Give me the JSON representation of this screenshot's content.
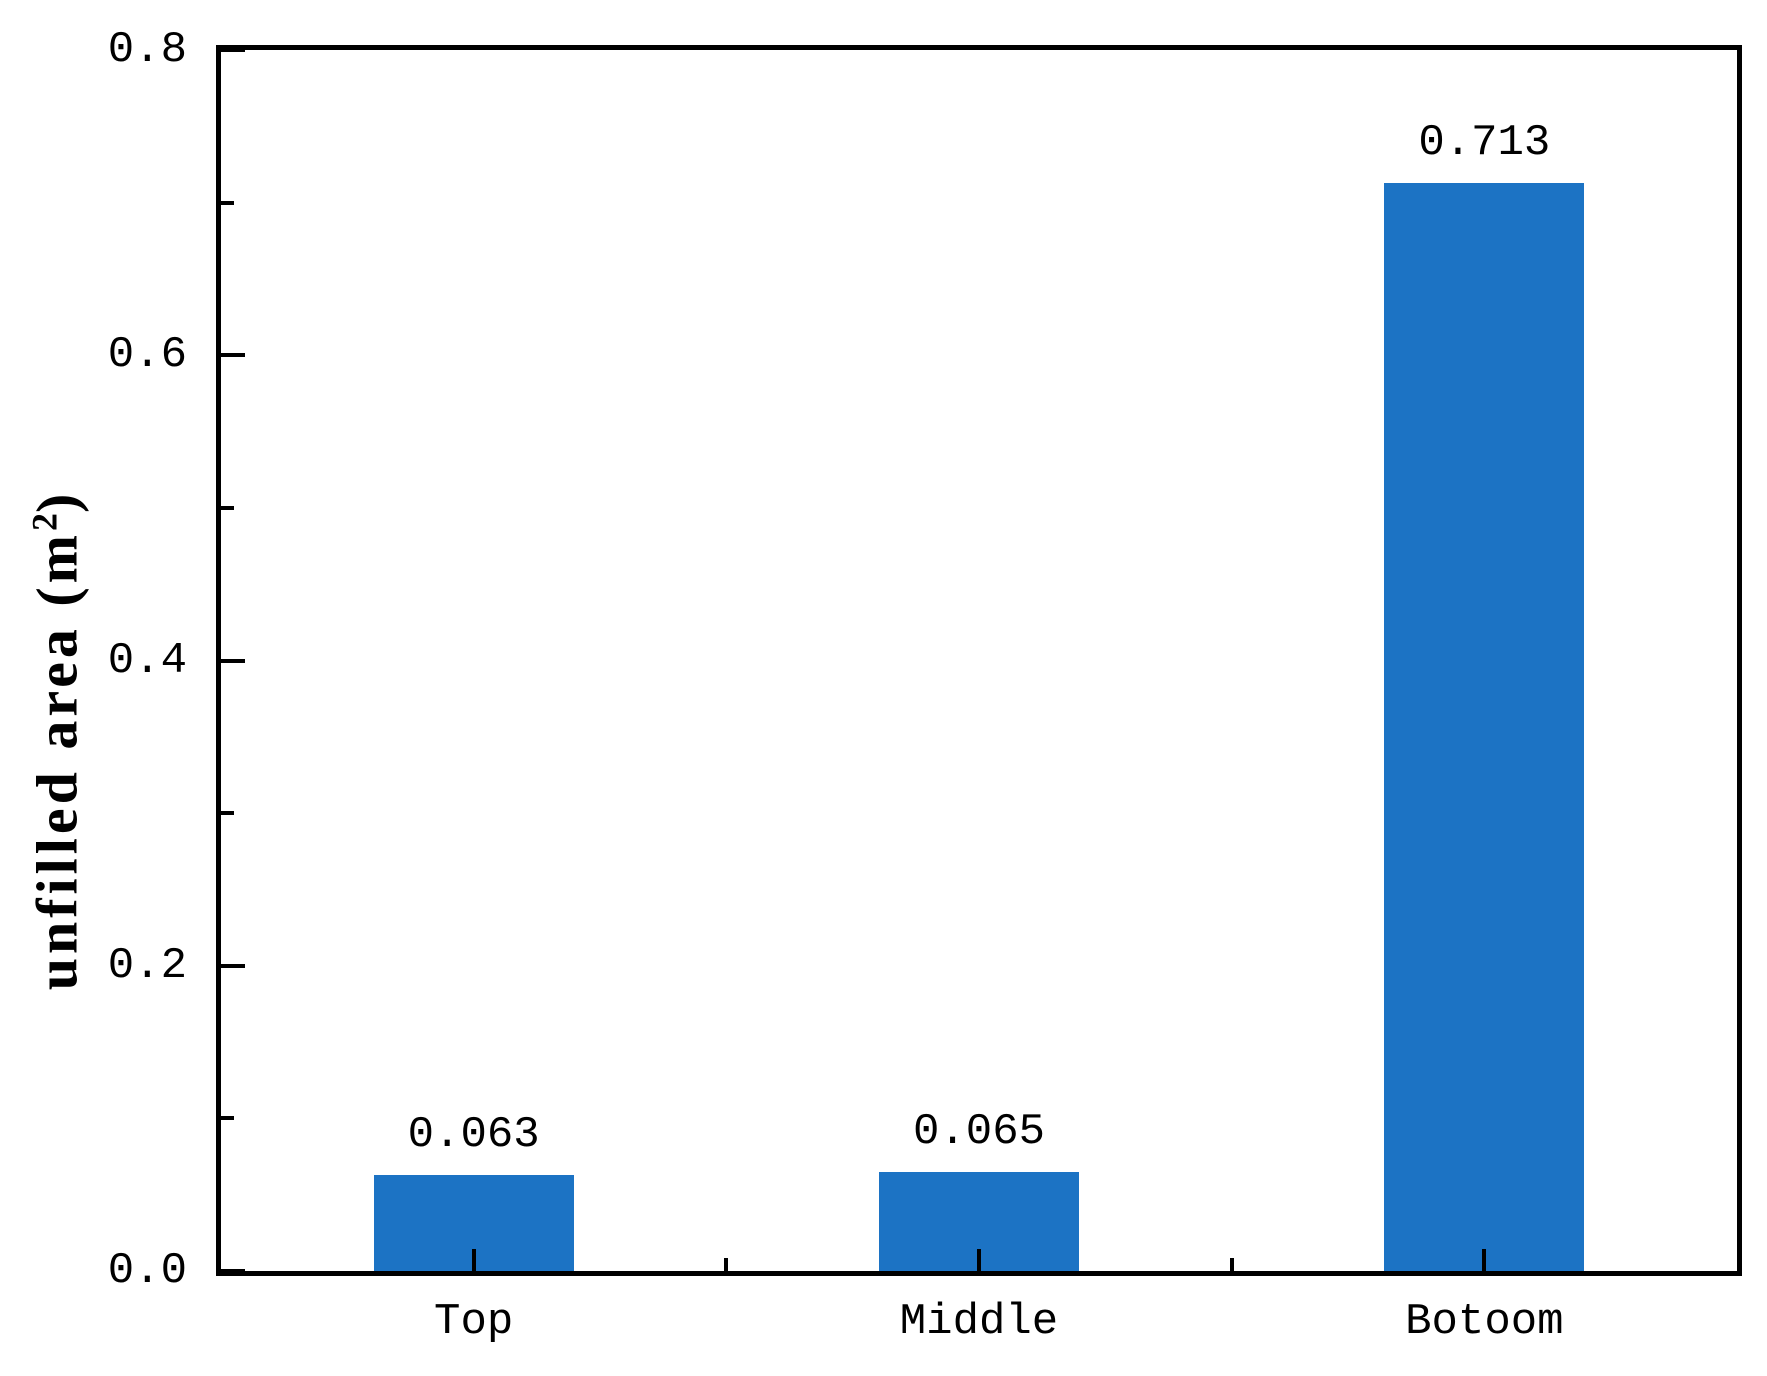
{
  "chart_data": {
    "type": "bar",
    "categories": [
      "Top",
      "Middle",
      "Botoom"
    ],
    "values": [
      0.063,
      0.065,
      0.713
    ],
    "value_labels": [
      "0.063",
      "0.065",
      "0.713"
    ],
    "series_count": 1,
    "title": "",
    "xlabel": "",
    "ylabel": "unfilled area (m²)",
    "ylabel_parts": {
      "base": "unfilled area (m",
      "sup": "2",
      "end": ")"
    },
    "ylim": [
      0.0,
      0.8
    ],
    "yticks": {
      "values": [
        0.0,
        0.2,
        0.4,
        0.6,
        0.8
      ],
      "labels": [
        "0.0",
        "0.2",
        "0.4",
        "0.6",
        "0.8"
      ]
    },
    "yticks_minor": [
      0.1,
      0.3,
      0.5,
      0.7
    ],
    "grid": false,
    "legend_position": "none",
    "tick_direction": "in",
    "bar_color": "#1c73c4",
    "axis_color": "#000000",
    "text_color": "#000000",
    "background_color": "#ffffff"
  }
}
